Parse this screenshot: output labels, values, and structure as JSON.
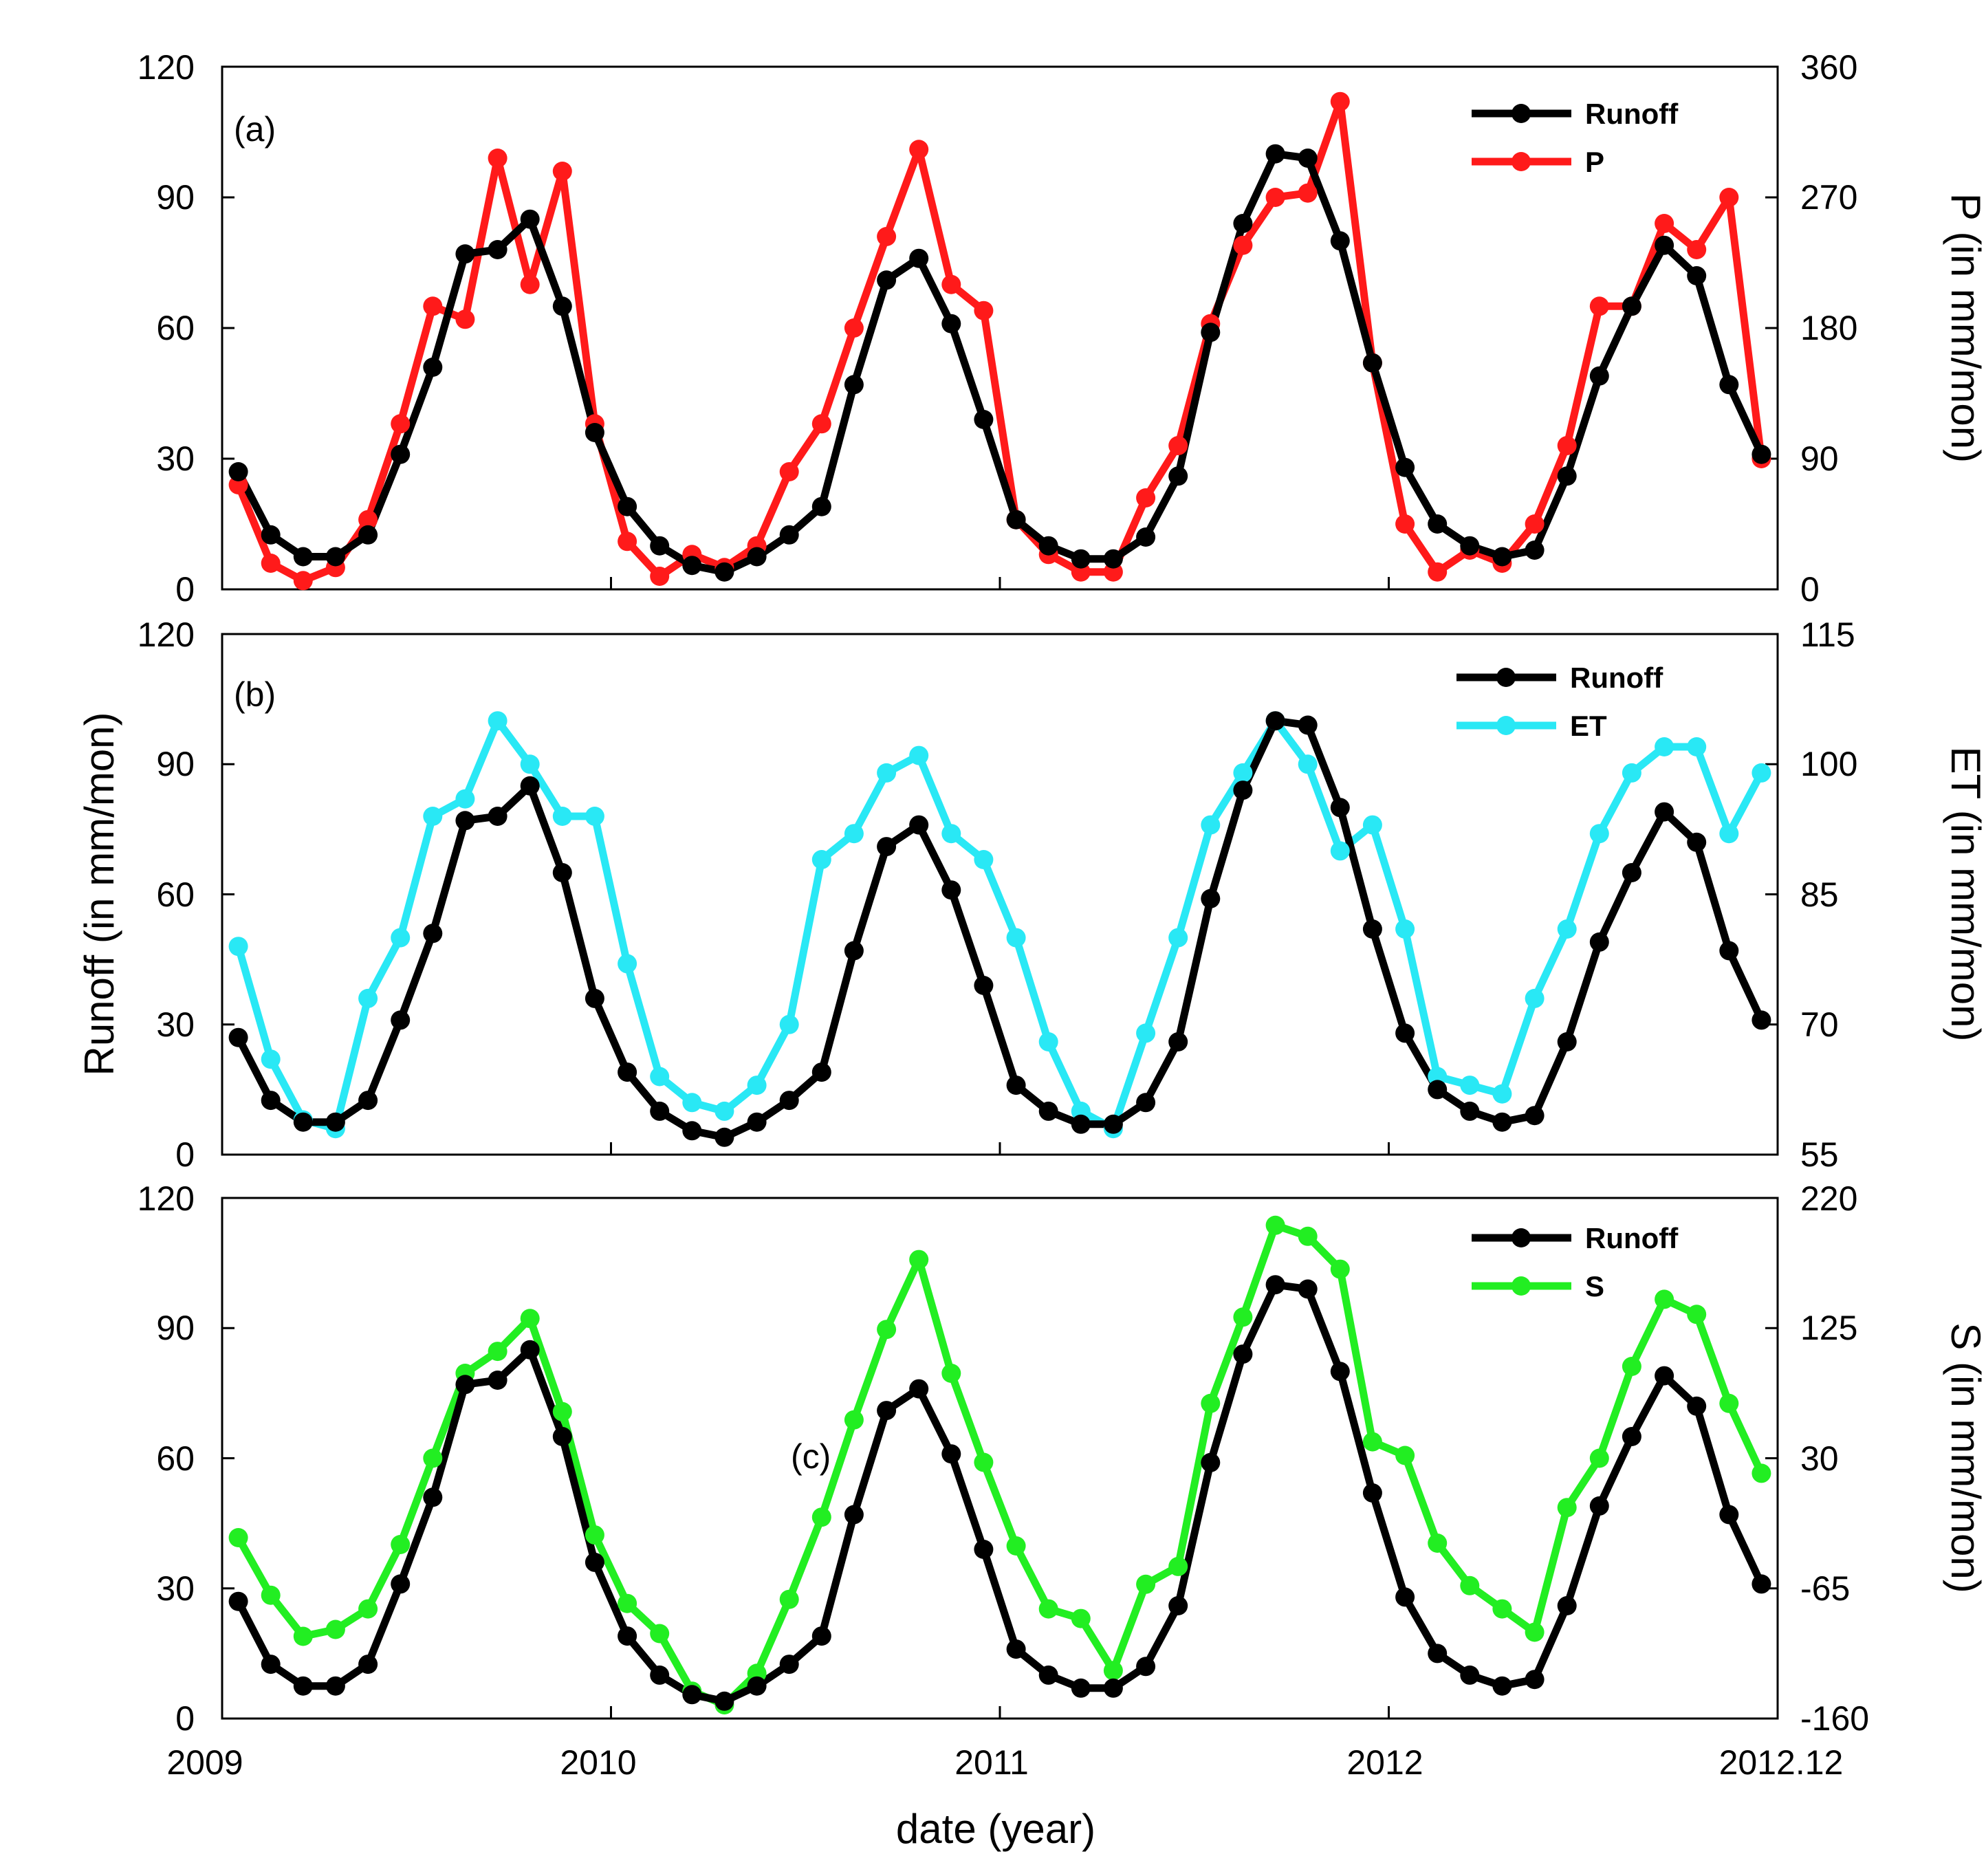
{
  "colors": {
    "runoff": "#000000",
    "P": "#ff1a1a",
    "ET": "#29e8f5",
    "S": "#22ee22"
  },
  "xlabel": "date (year)",
  "x_ticks": [
    "2009",
    "2010",
    "2011",
    "2012",
    "2012.12"
  ],
  "chart_data": [
    {
      "type": "line",
      "panel": "(a)",
      "x": [
        1,
        2,
        3,
        4,
        5,
        6,
        7,
        8,
        9,
        10,
        11,
        12,
        13,
        14,
        15,
        16,
        17,
        18,
        19,
        20,
        21,
        22,
        23,
        24,
        25,
        26,
        27,
        28,
        29,
        30,
        31,
        32,
        33,
        34,
        35,
        36,
        37,
        38,
        39,
        40,
        41,
        42,
        43,
        44,
        45,
        46,
        47,
        48
      ],
      "x_range": [
        0.5,
        48.5
      ],
      "ylabel_left": "",
      "ylabel_right": "P (in mm/mon)",
      "ylim_left": [
        0,
        120
      ],
      "ylim_right": [
        0,
        360
      ],
      "yticks_left": [
        "0",
        "30",
        "60",
        "90",
        "120"
      ],
      "yticks_right": [
        "0",
        "90",
        "180",
        "270",
        "360"
      ],
      "legend": [
        "Runoff",
        "P"
      ],
      "series": [
        {
          "name": "Runoff",
          "axis": "left",
          "color_key": "runoff",
          "values": [
            27,
            12.5,
            7.5,
            7.5,
            12.5,
            31,
            51,
            77,
            78,
            85,
            65,
            36,
            19,
            10,
            5.5,
            4,
            7.5,
            12.5,
            19,
            47,
            71,
            76,
            61,
            39,
            16,
            10,
            7,
            7,
            12,
            26,
            59,
            84,
            100,
            99,
            80,
            52,
            28,
            15,
            10,
            7.5,
            9,
            26,
            49,
            65,
            79,
            72,
            47,
            31
          ]
        },
        {
          "name": "P",
          "axis": "right",
          "color_key": "P",
          "values": [
            72,
            18,
            6,
            15,
            48,
            114,
            195,
            186,
            297,
            210,
            288,
            114,
            33,
            9,
            24,
            15,
            30,
            81,
            114,
            180,
            243,
            303,
            210,
            192,
            48,
            24,
            12,
            12,
            63,
            99,
            183,
            237,
            270,
            273,
            336,
            156,
            45,
            12,
            27,
            18,
            45,
            99,
            195,
            195,
            252,
            234,
            270,
            90
          ]
        }
      ]
    },
    {
      "type": "line",
      "panel": "(b)",
      "x": [
        1,
        2,
        3,
        4,
        5,
        6,
        7,
        8,
        9,
        10,
        11,
        12,
        13,
        14,
        15,
        16,
        17,
        18,
        19,
        20,
        21,
        22,
        23,
        24,
        25,
        26,
        27,
        28,
        29,
        30,
        31,
        32,
        33,
        34,
        35,
        36,
        37,
        38,
        39,
        40,
        41,
        42,
        43,
        44,
        45,
        46,
        47,
        48
      ],
      "x_range": [
        0.5,
        48.5
      ],
      "ylabel_left": "Runoff (in mm/mon)",
      "ylabel_right": "ET (in mm/mon)",
      "ylim_left": [
        0,
        120
      ],
      "ylim_right": [
        55,
        115
      ],
      "yticks_left": [
        "0",
        "30",
        "60",
        "90",
        "120"
      ],
      "yticks_right": [
        "55",
        "70",
        "85",
        "100",
        "115"
      ],
      "legend": [
        "Runoff",
        "ET"
      ],
      "series": [
        {
          "name": "Runoff",
          "axis": "left",
          "color_key": "runoff",
          "values": [
            27,
            12.5,
            7.5,
            7.5,
            12.5,
            31,
            51,
            77,
            78,
            85,
            65,
            36,
            19,
            10,
            5.5,
            4,
            7.5,
            12.5,
            19,
            47,
            71,
            76,
            61,
            39,
            16,
            10,
            7,
            7,
            12,
            26,
            59,
            84,
            100,
            99,
            80,
            52,
            28,
            15,
            10,
            7.5,
            9,
            26,
            49,
            65,
            79,
            72,
            47,
            31
          ]
        },
        {
          "name": "ET",
          "axis": "right",
          "color_key": "ET",
          "values": [
            79,
            66,
            59,
            58,
            73,
            80,
            94,
            96,
            105,
            100,
            94,
            94,
            77,
            64,
            61,
            60,
            63,
            70,
            89,
            92,
            99,
            101,
            92,
            89,
            80,
            68,
            60,
            58,
            69,
            80,
            93,
            99,
            105,
            100,
            90,
            93,
            81,
            64,
            63,
            62,
            73,
            81,
            92,
            99,
            102,
            102,
            92,
            99
          ]
        }
      ]
    },
    {
      "type": "line",
      "panel": "(c)",
      "x": [
        1,
        2,
        3,
        4,
        5,
        6,
        7,
        8,
        9,
        10,
        11,
        12,
        13,
        14,
        15,
        16,
        17,
        18,
        19,
        20,
        21,
        22,
        23,
        24,
        25,
        26,
        27,
        28,
        29,
        30,
        31,
        32,
        33,
        34,
        35,
        36,
        37,
        38,
        39,
        40,
        41,
        42,
        43,
        44,
        45,
        46,
        47,
        48
      ],
      "x_range": [
        0.5,
        48.5
      ],
      "xlabel": "date (year)",
      "ylabel_left": "",
      "ylabel_right": "S (in mm/mon)",
      "ylim_left": [
        0,
        120
      ],
      "ylim_right": [
        -160,
        220
      ],
      "yticks_left": [
        "0",
        "30",
        "60",
        "90",
        "120"
      ],
      "yticks_right": [
        "-160",
        "-65",
        "30",
        "125",
        "220"
      ],
      "legend": [
        "Runoff",
        "S"
      ],
      "series": [
        {
          "name": "Runoff",
          "axis": "left",
          "color_key": "runoff",
          "values": [
            27,
            12.5,
            7.5,
            7.5,
            12.5,
            31,
            51,
            77,
            78,
            85,
            65,
            36,
            19,
            10,
            5.5,
            4,
            7.5,
            12.5,
            19,
            47,
            71,
            76,
            61,
            39,
            16,
            10,
            7,
            7,
            12,
            26,
            59,
            84,
            100,
            99,
            80,
            52,
            28,
            15,
            10,
            7.5,
            9,
            26,
            49,
            65,
            79,
            72,
            47,
            31
          ]
        },
        {
          "name": "S",
          "axis": "right",
          "color_key": "S",
          "values": [
            -28,
            -70,
            -100,
            -95,
            -80,
            -33,
            30,
            92,
            108,
            132,
            64,
            -26,
            -76,
            -98,
            -140,
            -150,
            -127,
            -73,
            -13,
            58,
            124,
            175,
            92,
            27,
            -34,
            -80,
            -87,
            -125,
            -62,
            -49,
            70,
            133,
            200,
            192,
            168,
            42,
            32,
            -32,
            -63,
            -80,
            -97,
            -6,
            30,
            97,
            146,
            135,
            70,
            19
          ]
        }
      ]
    }
  ]
}
